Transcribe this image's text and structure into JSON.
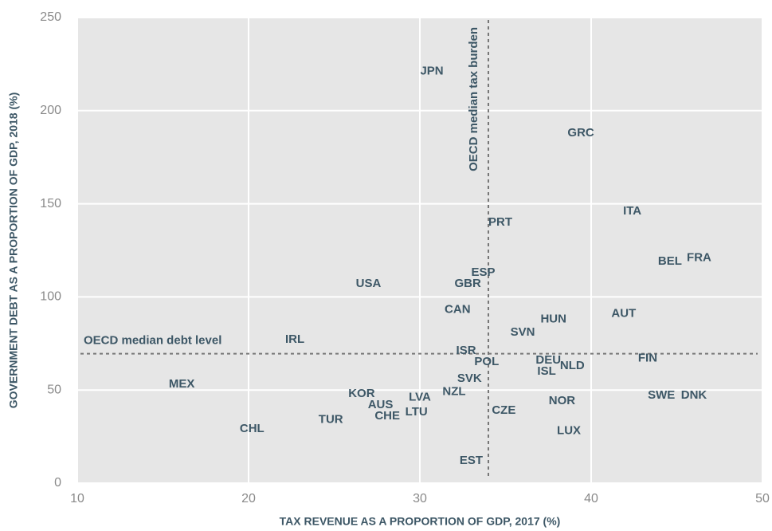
{
  "chart_data": {
    "type": "scatter",
    "xlabel": "TAX REVENUE AS A PROPORTION OF GDP, 2017 (%)",
    "ylabel": "GOVERNMENT DEBT AS A PROPORTION OF GDP, 2018 (%)",
    "xlim": [
      10,
      50
    ],
    "xticks": [
      10,
      20,
      30,
      40,
      50
    ],
    "ylim": [
      0,
      250
    ],
    "yticks": [
      0,
      50,
      100,
      150,
      200,
      250
    ],
    "grid": true,
    "color": "#3d5766",
    "labels": [
      "JPN",
      "GRC",
      "ITA",
      "PRT",
      "BEL",
      "FRA",
      "ESP",
      "GBR",
      "USA",
      "CAN",
      "AUT",
      "HUN",
      "SVN",
      "IRL",
      "ISR",
      "POL",
      "DEU",
      "FIN",
      "ISL",
      "NLD",
      "SVK",
      "MEX",
      "NZL",
      "KOR",
      "LVA",
      "SWE",
      "DNK",
      "NOR",
      "AUS",
      "CZE",
      "LTU",
      "CHE",
      "TUR",
      "LUX",
      "CHL",
      "EST"
    ],
    "x": [
      30.7,
      39.4,
      42.4,
      34.7,
      44.6,
      46.3,
      33.7,
      32.8,
      27.0,
      32.2,
      41.9,
      37.8,
      36.0,
      22.7,
      32.7,
      33.9,
      37.5,
      43.3,
      37.4,
      38.9,
      32.9,
      16.1,
      32.0,
      26.6,
      30.0,
      44.1,
      46.0,
      38.3,
      27.7,
      34.9,
      29.8,
      28.1,
      24.8,
      38.7,
      20.2,
      33.0
    ],
    "values": [
      221,
      188,
      146,
      140,
      119,
      121,
      113,
      107,
      107,
      93,
      91,
      88,
      81,
      77,
      71,
      65,
      66,
      67,
      60,
      63,
      56,
      53,
      49,
      48,
      46,
      47,
      47,
      44,
      42,
      39,
      38,
      36,
      34,
      28,
      29,
      12
    ],
    "reference_lines": [
      {
        "label": "OECD median tax burden",
        "axis": "x",
        "value": 34
      },
      {
        "label": "OECD median debt level",
        "axis": "y",
        "value": 69.5
      }
    ]
  }
}
